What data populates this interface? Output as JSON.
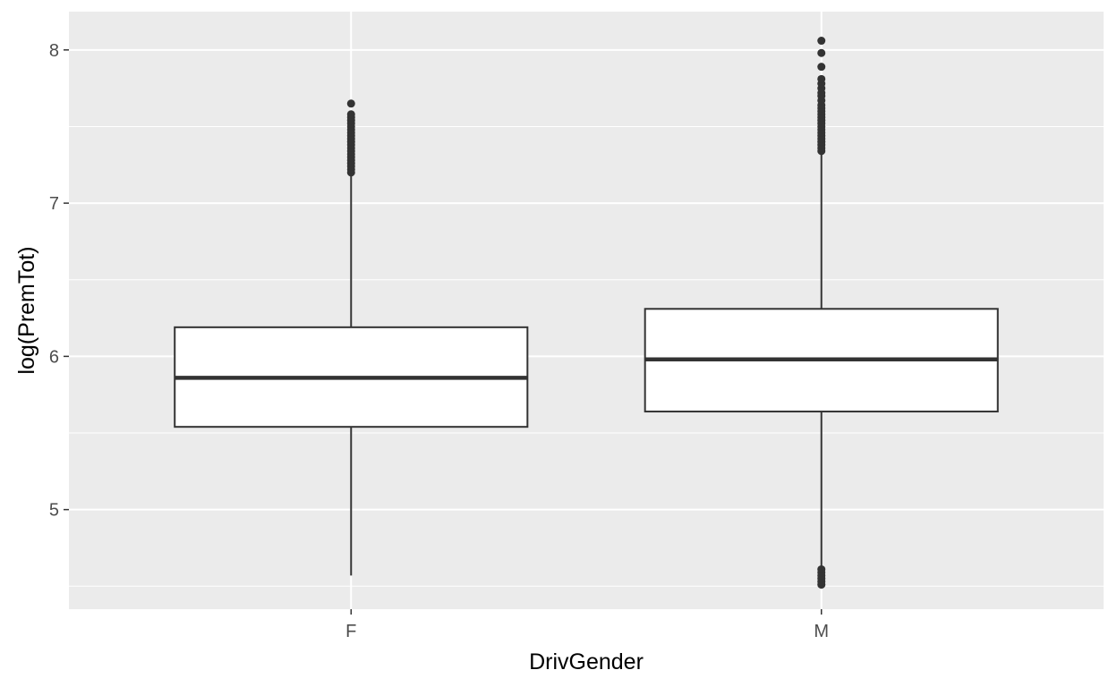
{
  "chart_data": {
    "type": "boxplot",
    "xlabel": "DrivGender",
    "ylabel": "log(PremTot)",
    "categories": [
      "F",
      "M"
    ],
    "ylim": [
      4.35,
      8.25
    ],
    "yticks": [
      5,
      6,
      7,
      8
    ],
    "grid": true,
    "panel_background": "#ebebeb",
    "box_fill": "#ffffff",
    "line_color": "#333333",
    "boxes": [
      {
        "category": "F",
        "whisker_low": 4.57,
        "q1": 5.54,
        "median": 5.86,
        "q3": 6.19,
        "whisker_high": 7.18,
        "outliers": [
          7.2,
          7.22,
          7.24,
          7.26,
          7.28,
          7.3,
          7.32,
          7.34,
          7.36,
          7.38,
          7.4,
          7.42,
          7.44,
          7.46,
          7.48,
          7.5,
          7.52,
          7.54,
          7.56,
          7.58,
          7.65
        ]
      },
      {
        "category": "M",
        "whisker_low": 4.63,
        "q1": 5.64,
        "median": 5.98,
        "q3": 6.31,
        "whisker_high": 7.33,
        "outliers": [
          4.51,
          4.53,
          4.55,
          4.57,
          4.59,
          4.61,
          7.34,
          7.36,
          7.38,
          7.4,
          7.42,
          7.44,
          7.46,
          7.48,
          7.5,
          7.52,
          7.54,
          7.56,
          7.58,
          7.6,
          7.62,
          7.64,
          7.67,
          7.7,
          7.72,
          7.75,
          7.78,
          7.81,
          7.89,
          7.98,
          8.06
        ]
      }
    ]
  }
}
